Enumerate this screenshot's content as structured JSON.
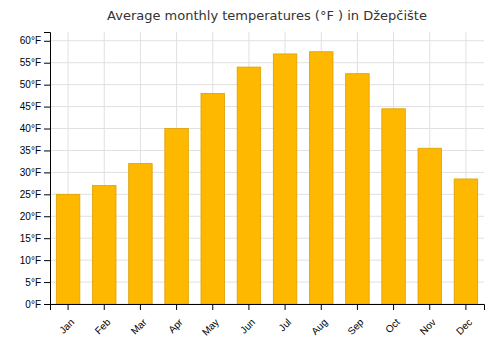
{
  "chart_data": {
    "type": "bar",
    "title": "Average monthly temperatures (°F ) in Džepčište",
    "categories": [
      "Jan",
      "Feb",
      "Mar",
      "Apr",
      "May",
      "Jun",
      "Jul",
      "Aug",
      "Sep",
      "Oct",
      "Nov",
      "Dec"
    ],
    "values": [
      25,
      27,
      32,
      40,
      48,
      54,
      57,
      57.5,
      52.5,
      44.5,
      35.5,
      28.5
    ],
    "color": "#FFB800",
    "ylim": [
      0,
      62
    ],
    "yticks": [
      {
        "value": 0,
        "label": "0°F"
      },
      {
        "value": 5,
        "label": "5°F"
      },
      {
        "value": 10,
        "label": "10°F"
      },
      {
        "value": 15,
        "label": "15°F"
      },
      {
        "value": 20,
        "label": "20°F"
      },
      {
        "value": 25,
        "label": "25°F"
      },
      {
        "value": 30,
        "label": "30°F"
      },
      {
        "value": 35,
        "label": "35°F"
      },
      {
        "value": 40,
        "label": "40°F"
      },
      {
        "value": 45,
        "label": "45°F"
      },
      {
        "value": 50,
        "label": "50°F"
      },
      {
        "value": 55,
        "label": "55°F"
      },
      {
        "value": 60,
        "label": "60°F"
      }
    ],
    "grid": true
  }
}
